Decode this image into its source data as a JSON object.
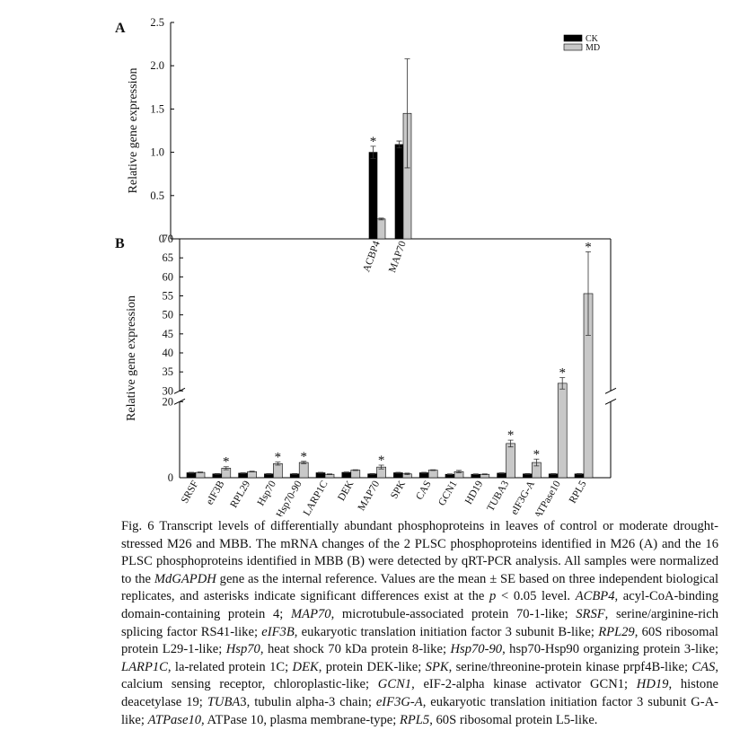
{
  "chart_data": [
    {
      "type": "bar",
      "panel": "A",
      "ylabel": "Relative gene expression",
      "categories": [
        "ACBP4",
        "MAP70"
      ],
      "series": [
        {
          "name": "CK",
          "color": "#000000",
          "values": [
            1.0,
            1.09
          ],
          "errors": [
            0.07,
            0.04
          ],
          "annotations": [
            "*",
            null
          ]
        },
        {
          "name": "MD",
          "color": "#c8c8c8",
          "values": [
            0.23,
            1.45
          ],
          "errors": [
            0.01,
            0.63
          ],
          "annotations": [
            null,
            null
          ]
        }
      ],
      "ylim": [
        0,
        2.5
      ],
      "yticks": [
        0,
        0.5,
        {
          "value": 1,
          "label": "1.0"
        },
        1.5,
        {
          "value": 2,
          "label": "2.0"
        },
        2.5
      ],
      "legend": "upper right"
    },
    {
      "type": "bar",
      "panel": "B",
      "ylabel": "Relative gene expression",
      "categories": [
        "SRSF",
        "eIF3B",
        "RPL29",
        "Hsp70",
        "Hsp70-90",
        "LARP1C",
        "DEK",
        "MAP70",
        "SPK",
        "CAS",
        "GCN1",
        "HD19",
        "TUBA3",
        "eIF3G-A",
        "ATPase10",
        "RPL5"
      ],
      "series": [
        {
          "color": "#000000",
          "values": [
            1.3,
            1.0,
            1.2,
            1.0,
            1.0,
            1.3,
            1.4,
            1.0,
            1.3,
            1.3,
            0.9,
            0.9,
            1.2,
            1.0,
            1.0,
            1.0
          ],
          "errors": [
            0.1,
            0.1,
            0.1,
            0.1,
            0.1,
            0.1,
            0.1,
            0.1,
            0.1,
            0.1,
            0.1,
            0.1,
            0.1,
            0.1,
            0.1,
            0.1
          ],
          "annotations": [
            null,
            null,
            null,
            null,
            null,
            null,
            null,
            null,
            null,
            null,
            null,
            null,
            null,
            null,
            null,
            null
          ]
        },
        {
          "color": "#c8c8c8",
          "values": [
            1.4,
            2.5,
            1.6,
            3.7,
            4.0,
            0.9,
            2.0,
            2.8,
            1.0,
            2.0,
            1.6,
            0.9,
            9.0,
            4.0,
            32.0,
            55.6
          ],
          "errors": [
            0.1,
            0.4,
            0.1,
            0.4,
            0.3,
            0.1,
            0.1,
            0.5,
            0.2,
            0.1,
            0.3,
            0.1,
            0.9,
            0.9,
            1.5,
            11.0
          ],
          "annotations": [
            null,
            "*",
            null,
            "*",
            "*",
            null,
            null,
            "*",
            null,
            null,
            null,
            null,
            "*",
            "*",
            "*",
            "*"
          ]
        }
      ],
      "ylim": [
        0,
        70
      ],
      "ybreak": [
        20,
        30
      ],
      "yticks": [
        0,
        20,
        30,
        35,
        40,
        45,
        50,
        55,
        60,
        65,
        70
      ]
    }
  ],
  "caption": [
    {
      "text": "Fig. 6 Transcript levels of differentially abundant phosphoproteins in leaves of control or moderate drought-stressed M26 and MBB. The mRNA changes of the 2 PLSC phosphoproteins identified in M26 (A) and the 16 PLSC phosphoproteins identified in MBB (B) were detected by qRT-PCR analysis. All samples were normalized to the ",
      "italic": false
    },
    {
      "text": "MdGAPDH",
      "italic": true
    },
    {
      "text": " gene as the internal reference. Values are the mean ± SE based on three independent biological replicates, and asterisks indicate significant differences exist at the ",
      "italic": false
    },
    {
      "text": "p",
      "italic": true
    },
    {
      "text": " < 0.05 level. ",
      "italic": false
    },
    {
      "text": "ACBP4",
      "italic": true
    },
    {
      "text": ", acyl-CoA-binding domain-containing protein 4; ",
      "italic": false
    },
    {
      "text": "MAP70",
      "italic": true
    },
    {
      "text": ", microtubule-associated protein 70-1-like; ",
      "italic": false
    },
    {
      "text": "SRSF",
      "italic": true
    },
    {
      "text": ", serine/arginine-rich splicing factor RS41-like; ",
      "italic": false
    },
    {
      "text": "eIF3B",
      "italic": true
    },
    {
      "text": ", eukaryotic translation initiation factor 3 subunit B-like; ",
      "italic": false
    },
    {
      "text": "RPL29",
      "italic": true
    },
    {
      "text": ", 60S ribosomal protein L29-1-like; ",
      "italic": false
    },
    {
      "text": "Hsp70",
      "italic": true
    },
    {
      "text": ", heat shock 70 kDa protein 8-like; ",
      "italic": false
    },
    {
      "text": "Hsp70-90",
      "italic": true
    },
    {
      "text": ", hsp70-Hsp90 organizing protein 3-like; ",
      "italic": false
    },
    {
      "text": "LARP1C",
      "italic": true
    },
    {
      "text": ", la-related protein 1C; ",
      "italic": false
    },
    {
      "text": "DEK",
      "italic": true
    },
    {
      "text": ", protein DEK-like; ",
      "italic": false
    },
    {
      "text": "SPK",
      "italic": true
    },
    {
      "text": ", serine/threonine-protein kinase prpf4B-like; ",
      "italic": false
    },
    {
      "text": "CAS",
      "italic": true
    },
    {
      "text": ", calcium sensing receptor, chloroplastic-like; ",
      "italic": false
    },
    {
      "text": "GCN1",
      "italic": true
    },
    {
      "text": ", eIF-2-alpha kinase activator GCN1; ",
      "italic": false
    },
    {
      "text": "HD19",
      "italic": true
    },
    {
      "text": ", histone deacetylase 19; ",
      "italic": false
    },
    {
      "text": "TUBA",
      "italic": true
    },
    {
      "text": "3, tubulin alpha-3 chain; ",
      "italic": false
    },
    {
      "text": "eIF3G-A",
      "italic": true
    },
    {
      "text": ", eukaryotic translation initiation factor 3 subunit G-A-like; ",
      "italic": false
    },
    {
      "text": "ATPase10",
      "italic": true
    },
    {
      "text": ", ATPase 10, plasma membrane-type; ",
      "italic": false
    },
    {
      "text": "RPL5",
      "italic": true
    },
    {
      "text": ", 60S ribosomal protein L5-like.",
      "italic": false
    }
  ]
}
